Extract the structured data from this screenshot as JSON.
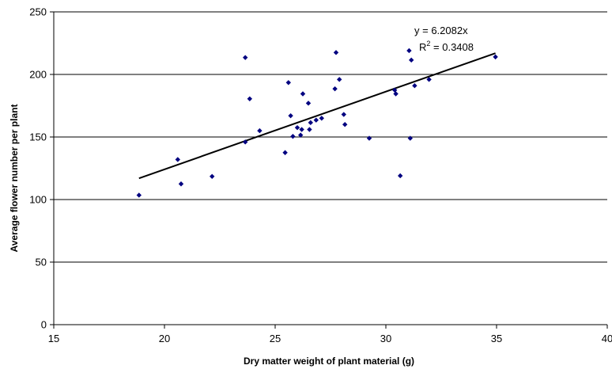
{
  "chart_data": {
    "type": "scatter",
    "title": "",
    "xlabel": "Dry matter weight of plant material (g)",
    "ylabel": "Average flower number per plant",
    "xlim": [
      15,
      40
    ],
    "ylim": [
      0,
      250
    ],
    "xticks": [
      "15",
      "20",
      "25",
      "30",
      "35",
      "40"
    ],
    "yticks": [
      "0",
      "50",
      "100",
      "150",
      "200",
      "250"
    ],
    "grid": "horizontal",
    "legend": "none",
    "marker_color": "#000080",
    "trendline": {
      "x_range": [
        18.85,
        34.95
      ],
      "y_range": [
        117,
        217
      ],
      "equation": "y = 6.2082x",
      "r2_prefix": "R",
      "r2_sup": "2",
      "r2_suffix": " = 0.3408"
    },
    "points": [
      {
        "x": 18.85,
        "y": 103.5
      },
      {
        "x": 20.6,
        "y": 132
      },
      {
        "x": 20.75,
        "y": 112.5
      },
      {
        "x": 22.15,
        "y": 118.5
      },
      {
        "x": 23.65,
        "y": 213.5
      },
      {
        "x": 23.65,
        "y": 146
      },
      {
        "x": 23.85,
        "y": 180.5
      },
      {
        "x": 24.3,
        "y": 155
      },
      {
        "x": 25.45,
        "y": 137.5
      },
      {
        "x": 25.6,
        "y": 193.5
      },
      {
        "x": 25.7,
        "y": 167
      },
      {
        "x": 25.8,
        "y": 150.5
      },
      {
        "x": 26.0,
        "y": 157.5
      },
      {
        "x": 26.15,
        "y": 151.5
      },
      {
        "x": 26.2,
        "y": 156
      },
      {
        "x": 26.25,
        "y": 184.5
      },
      {
        "x": 26.5,
        "y": 177
      },
      {
        "x": 26.55,
        "y": 156
      },
      {
        "x": 26.6,
        "y": 161.5
      },
      {
        "x": 26.85,
        "y": 163.5
      },
      {
        "x": 27.1,
        "y": 165
      },
      {
        "x": 27.7,
        "y": 188.5
      },
      {
        "x": 27.75,
        "y": 217.5
      },
      {
        "x": 27.9,
        "y": 196
      },
      {
        "x": 28.1,
        "y": 168
      },
      {
        "x": 28.15,
        "y": 160
      },
      {
        "x": 29.25,
        "y": 149
      },
      {
        "x": 30.4,
        "y": 187.5
      },
      {
        "x": 30.45,
        "y": 184.5
      },
      {
        "x": 30.65,
        "y": 119
      },
      {
        "x": 31.05,
        "y": 219
      },
      {
        "x": 31.15,
        "y": 211.5
      },
      {
        "x": 31.3,
        "y": 191
      },
      {
        "x": 31.1,
        "y": 149
      },
      {
        "x": 31.95,
        "y": 196
      },
      {
        "x": 34.95,
        "y": 214
      }
    ]
  }
}
